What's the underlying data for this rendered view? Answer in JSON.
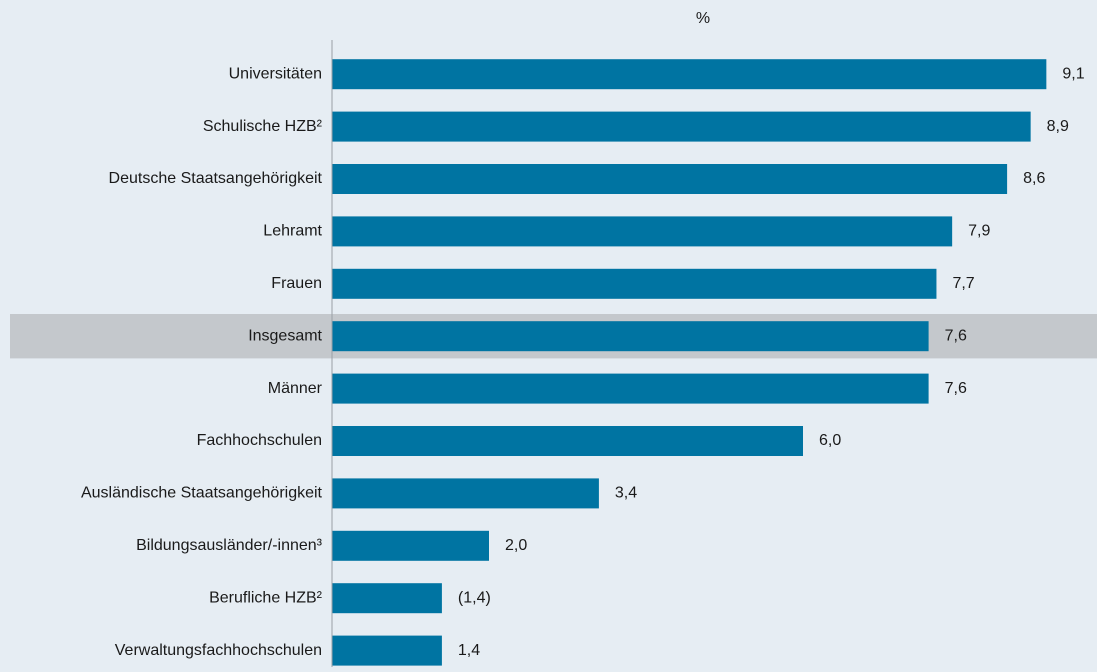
{
  "chart_data": {
    "type": "bar",
    "orientation": "horizontal",
    "x_label": "%",
    "categories": [
      "Universitäten",
      "Schulische HZB²",
      "Deutsche Staatsangehörigkeit",
      "Lehramt",
      "Frauen",
      "Insgesamt",
      "Männer",
      "Fachhochschulen",
      "Ausländische Staatsangehörigkeit",
      "Bildungsausländer/-innen³",
      "Berufliche HZB²",
      "Verwaltungsfachhochschulen"
    ],
    "values": [
      9.1,
      8.9,
      8.6,
      7.9,
      7.7,
      7.6,
      7.6,
      6.0,
      3.4,
      2.0,
      1.4,
      1.4
    ],
    "value_labels": [
      "9,1",
      "8,9",
      "8,6",
      "7,9",
      "7,7",
      "7,6",
      "7,6",
      "6,0",
      "3,4",
      "2,0",
      "(1,4)",
      "1,4"
    ],
    "color": "#0074a2",
    "highlight": 5,
    "highlight_color": "#c4c8cc",
    "xlim": [
      0,
      9.5
    ]
  }
}
